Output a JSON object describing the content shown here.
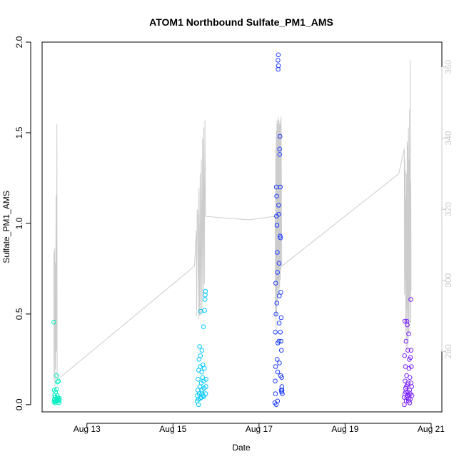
{
  "chart_data": {
    "type": "scatter",
    "title": "ATOM1 Northbound Sulfate_PM1_AMS",
    "xlabel": "Date",
    "ylabel": "Sulfate_PM1_AMS",
    "xlim": [
      "2016-08-11T23:00",
      "2016-08-21T06:00"
    ],
    "ylim": [
      -0.04,
      2.0
    ],
    "y_ticks": [
      "0.0",
      "0.5",
      "1.0",
      "1.5",
      "2.0"
    ],
    "x_ticks": [
      {
        "date": "2016-08-13",
        "label": "Aug 13"
      },
      {
        "date": "2016-08-15",
        "label": "Aug 15"
      },
      {
        "date": "2016-08-17",
        "label": "Aug 17"
      },
      {
        "date": "2016-08-19",
        "label": "Aug 19"
      },
      {
        "date": "2016-08-21",
        "label": "Aug 21"
      }
    ],
    "right_axis": {
      "ylim": [
        263,
        367
      ],
      "ticks": [
        "280",
        "300",
        "320",
        "340",
        "360"
      ],
      "color": "#c8c8c8"
    },
    "marker_colors": {
      "segment1": "#00ffcc",
      "segment2": "#00ccff",
      "segment3": "#0033ff",
      "segment4": "#6600ff"
    },
    "line_color": "#cccccc",
    "segments": [
      {
        "color": "#00eec0",
        "points": [
          [
            "2016-08-12T05:30",
            0.455
          ],
          [
            "2016-08-12T05:45",
            0.08
          ],
          [
            "2016-08-12T05:50",
            0.03
          ],
          [
            "2016-08-12T06:00",
            0.05
          ],
          [
            "2016-08-12T06:10",
            0.02
          ],
          [
            "2016-08-12T06:15",
            0.01
          ],
          [
            "2016-08-12T06:25",
            0.04
          ],
          [
            "2016-08-12T06:30",
            0.07
          ],
          [
            "2016-08-12T06:40",
            0.03
          ],
          [
            "2016-08-12T06:50",
            0.02
          ],
          [
            "2016-08-12T07:00",
            0.085
          ],
          [
            "2016-08-12T07:05",
            0.16
          ],
          [
            "2016-08-12T07:15",
            0.03
          ],
          [
            "2016-08-12T07:25",
            0.02
          ],
          [
            "2016-08-12T07:35",
            0.125
          ],
          [
            "2016-08-12T07:45",
            0.04
          ],
          [
            "2016-08-12T07:55",
            0.025
          ],
          [
            "2016-08-12T08:05",
            0.13
          ],
          [
            "2016-08-12T08:10",
            0.03
          ],
          [
            "2016-08-12T08:20",
            0.01
          ],
          [
            "2016-08-12T08:30",
            0.02
          ],
          [
            "2016-08-12T08:40",
            0.035
          ],
          [
            "2016-08-12T05:40",
            0.015
          ],
          [
            "2016-08-12T07:30",
            0.05
          ]
        ]
      },
      {
        "color": "#00c8ff",
        "points": [
          [
            "2016-08-15T13:30",
            0.02
          ],
          [
            "2016-08-15T13:40",
            0.05
          ],
          [
            "2016-08-15T13:50",
            0.08
          ],
          [
            "2016-08-15T14:00",
            0.14
          ],
          [
            "2016-08-15T14:10",
            0.03
          ],
          [
            "2016-08-15T14:20",
            0.19
          ],
          [
            "2016-08-15T14:30",
            0.25
          ],
          [
            "2016-08-15T14:40",
            0.06
          ],
          [
            "2016-08-15T14:50",
            0.32
          ],
          [
            "2016-08-15T15:00",
            0.1
          ],
          [
            "2016-08-15T15:10",
            0.21
          ],
          [
            "2016-08-15T15:20",
            0.27
          ],
          [
            "2016-08-15T15:30",
            0.515
          ],
          [
            "2016-08-15T15:40",
            0.04
          ],
          [
            "2016-08-15T15:50",
            0.12
          ],
          [
            "2016-08-15T16:00",
            0.18
          ],
          [
            "2016-08-15T16:10",
            0.3
          ],
          [
            "2016-08-15T16:20",
            0.08
          ],
          [
            "2016-08-15T16:30",
            0.15
          ],
          [
            "2016-08-15T16:40",
            0.22
          ],
          [
            "2016-08-15T16:50",
            0.05
          ],
          [
            "2016-08-15T17:00",
            0.43
          ],
          [
            "2016-08-15T17:10",
            0.13
          ],
          [
            "2016-08-15T17:20",
            0.09
          ],
          [
            "2016-08-15T17:30",
            0.2
          ],
          [
            "2016-08-15T17:40",
            0.52
          ],
          [
            "2016-08-15T17:50",
            0.58
          ],
          [
            "2016-08-15T18:00",
            0.605
          ],
          [
            "2016-08-15T18:10",
            0.625
          ],
          [
            "2016-08-15T18:15",
            0.06
          ],
          [
            "2016-08-15T18:20",
            0.1
          ],
          [
            "2016-08-15T18:25",
            0.14
          ],
          [
            "2016-08-15T14:15",
            0.0
          ],
          [
            "2016-08-15T15:15",
            0.035
          ],
          [
            "2016-08-15T16:05",
            0.06
          ],
          [
            "2016-08-15T17:15",
            0.045
          ]
        ]
      },
      {
        "color": "#1e3cff",
        "points": [
          [
            "2016-08-17T09:00",
            0.13
          ],
          [
            "2016-08-17T09:10",
            0.06
          ],
          [
            "2016-08-17T09:20",
            0.67
          ],
          [
            "2016-08-17T09:30",
            0.5
          ],
          [
            "2016-08-17T09:40",
            1.2
          ],
          [
            "2016-08-17T09:50",
            1.15
          ],
          [
            "2016-08-17T10:00",
            0.99
          ],
          [
            "2016-08-17T10:10",
            0.84
          ],
          [
            "2016-08-17T10:20",
            0.02
          ],
          [
            "2016-08-17T10:30",
            0.34
          ],
          [
            "2016-08-17T10:35",
            1.9
          ],
          [
            "2016-08-17T10:40",
            1.85
          ],
          [
            "2016-08-17T10:45",
            1.93
          ],
          [
            "2016-08-17T10:50",
            1.87
          ],
          [
            "2016-08-17T11:00",
            1.05
          ],
          [
            "2016-08-17T11:10",
            0.78
          ],
          [
            "2016-08-17T11:20",
            0.6
          ],
          [
            "2016-08-17T11:30",
            1.41
          ],
          [
            "2016-08-17T11:35",
            1.38
          ],
          [
            "2016-08-17T11:40",
            1.48
          ],
          [
            "2016-08-17T11:50",
            1.2
          ],
          [
            "2016-08-17T12:00",
            0.92
          ],
          [
            "2016-08-17T12:10",
            0.62
          ],
          [
            "2016-08-17T12:20",
            0.48
          ],
          [
            "2016-08-17T12:30",
            0.3
          ],
          [
            "2016-08-17T12:40",
            0.15
          ],
          [
            "2016-08-17T12:50",
            0.08
          ],
          [
            "2016-08-17T13:00",
            0.06
          ],
          [
            "2016-08-17T08:50",
            0.01
          ],
          [
            "2016-08-17T09:05",
            0.4
          ],
          [
            "2016-08-17T09:15",
            0.21
          ],
          [
            "2016-08-17T09:35",
            0.0
          ],
          [
            "2016-08-17T09:45",
            1.04
          ],
          [
            "2016-08-17T09:55",
            0.56
          ],
          [
            "2016-08-17T10:05",
            0.25
          ],
          [
            "2016-08-17T10:15",
            0.73
          ],
          [
            "2016-08-17T10:25",
            0.18
          ],
          [
            "2016-08-17T10:55",
            1.1
          ],
          [
            "2016-08-17T11:05",
            0.35
          ],
          [
            "2016-08-17T11:15",
            0.45
          ],
          [
            "2016-08-17T11:25",
            0.23
          ],
          [
            "2016-08-17T11:45",
            0.93
          ],
          [
            "2016-08-17T11:55",
            0.4
          ],
          [
            "2016-08-17T12:05",
            0.16
          ],
          [
            "2016-08-17T12:15",
            0.35
          ],
          [
            "2016-08-17T12:25",
            0.08
          ],
          [
            "2016-08-17T12:35",
            0.07
          ],
          [
            "2016-08-17T12:45",
            0.1
          ]
        ]
      },
      {
        "color": "#7a22ff",
        "points": [
          [
            "2016-08-20T09:00",
            0.04
          ],
          [
            "2016-08-20T09:10",
            0.27
          ],
          [
            "2016-08-20T09:20",
            0.46
          ],
          [
            "2016-08-20T09:30",
            0.13
          ],
          [
            "2016-08-20T09:40",
            0.21
          ],
          [
            "2016-08-20T09:50",
            0.07
          ],
          [
            "2016-08-20T10:00",
            0.35
          ],
          [
            "2016-08-20T10:10",
            0.1
          ],
          [
            "2016-08-20T10:20",
            0.16
          ],
          [
            "2016-08-20T10:30",
            0.46
          ],
          [
            "2016-08-20T10:40",
            0.44
          ],
          [
            "2016-08-20T10:50",
            0.05
          ],
          [
            "2016-08-20T11:00",
            0.3
          ],
          [
            "2016-08-20T11:10",
            0.12
          ],
          [
            "2016-08-20T11:20",
            0.02
          ],
          [
            "2016-08-20T11:30",
            0.39
          ],
          [
            "2016-08-20T11:40",
            0.2
          ],
          [
            "2016-08-20T11:50",
            0.25
          ],
          [
            "2016-08-20T12:00",
            0.08
          ],
          [
            "2016-08-20T12:10",
            0.15
          ],
          [
            "2016-08-20T12:20",
            0.03
          ],
          [
            "2016-08-20T12:30",
            0.26
          ],
          [
            "2016-08-20T12:40",
            0.58
          ],
          [
            "2016-08-20T12:50",
            0.3
          ],
          [
            "2016-08-20T13:00",
            0.21
          ],
          [
            "2016-08-20T13:10",
            0.1
          ],
          [
            "2016-08-20T13:20",
            0.05
          ],
          [
            "2016-08-20T09:05",
            0.0
          ],
          [
            "2016-08-20T09:25",
            0.06
          ],
          [
            "2016-08-20T09:45",
            0.09
          ],
          [
            "2016-08-20T10:05",
            0.02
          ],
          [
            "2016-08-20T10:25",
            0.04
          ],
          [
            "2016-08-20T10:45",
            0.11
          ],
          [
            "2016-08-20T11:05",
            0.07
          ],
          [
            "2016-08-20T11:25",
            0.03
          ],
          [
            "2016-08-20T11:45",
            0.05
          ],
          [
            "2016-08-20T12:05",
            0.01
          ],
          [
            "2016-08-20T12:25",
            0.06
          ],
          [
            "2016-08-20T12:45",
            0.12
          ]
        ]
      }
    ],
    "line_series": [
      [
        "2016-08-12T05:30",
        308
      ],
      [
        "2016-08-12T05:40",
        272
      ],
      [
        "2016-08-12T05:50",
        300
      ],
      [
        "2016-08-12T06:00",
        309
      ],
      [
        "2016-08-12T06:10",
        270
      ],
      [
        "2016-08-12T06:20",
        305
      ],
      [
        "2016-08-12T06:30",
        275
      ],
      [
        "2016-08-12T06:45",
        324
      ],
      [
        "2016-08-12T07:00",
        280
      ],
      [
        "2016-08-12T07:15",
        344
      ],
      [
        "2016-08-12T07:25",
        272
      ],
      [
        "2016-08-15T12:00",
        304
      ],
      [
        "2016-08-15T13:00",
        314
      ],
      [
        "2016-08-15T13:10",
        290
      ],
      [
        "2016-08-15T13:30",
        320
      ],
      [
        "2016-08-15T13:50",
        318
      ],
      [
        "2016-08-15T14:10",
        289
      ],
      [
        "2016-08-15T14:30",
        326
      ],
      [
        "2016-08-15T14:50",
        290
      ],
      [
        "2016-08-15T15:10",
        330
      ],
      [
        "2016-08-15T15:30",
        290
      ],
      [
        "2016-08-15T15:50",
        334
      ],
      [
        "2016-08-15T16:10",
        291
      ],
      [
        "2016-08-15T16:30",
        340
      ],
      [
        "2016-08-15T16:50",
        295
      ],
      [
        "2016-08-15T17:10",
        343
      ],
      [
        "2016-08-15T17:30",
        299
      ],
      [
        "2016-08-15T17:50",
        345
      ],
      [
        "2016-08-15T18:10",
        318
      ],
      [
        "2016-08-16T18:00",
        317
      ],
      [
        "2016-08-17T09:00",
        318
      ],
      [
        "2016-08-17T09:10",
        290
      ],
      [
        "2016-08-17T09:20",
        337
      ],
      [
        "2016-08-17T09:30",
        285
      ],
      [
        "2016-08-17T09:40",
        342
      ],
      [
        "2016-08-17T09:50",
        290
      ],
      [
        "2016-08-17T10:00",
        345
      ],
      [
        "2016-08-17T10:10",
        294
      ],
      [
        "2016-08-17T10:20",
        344
      ],
      [
        "2016-08-17T10:30",
        295
      ],
      [
        "2016-08-17T10:40",
        346
      ],
      [
        "2016-08-17T10:50",
        300
      ],
      [
        "2016-08-17T11:00",
        345
      ],
      [
        "2016-08-17T11:10",
        296
      ],
      [
        "2016-08-17T11:20",
        344
      ],
      [
        "2016-08-17T11:30",
        298
      ],
      [
        "2016-08-17T11:40",
        345
      ],
      [
        "2016-08-17T11:50",
        300
      ],
      [
        "2016-08-17T12:00",
        344
      ],
      [
        "2016-08-17T12:10",
        303
      ],
      [
        "2016-08-17T12:20",
        346
      ],
      [
        "2016-08-17T12:40",
        304
      ],
      [
        "2016-08-20T06:00",
        330
      ],
      [
        "2016-08-20T09:00",
        337
      ],
      [
        "2016-08-20T09:10",
        296
      ],
      [
        "2016-08-20T09:20",
        334
      ],
      [
        "2016-08-20T09:30",
        300
      ],
      [
        "2016-08-20T09:40",
        331
      ],
      [
        "2016-08-20T09:50",
        285
      ],
      [
        "2016-08-20T10:00",
        323
      ],
      [
        "2016-08-20T10:10",
        281
      ],
      [
        "2016-08-20T10:20",
        330
      ],
      [
        "2016-08-20T10:30",
        292
      ],
      [
        "2016-08-20T10:40",
        339
      ],
      [
        "2016-08-20T10:50",
        280
      ],
      [
        "2016-08-20T11:00",
        338
      ],
      [
        "2016-08-20T11:10",
        283
      ],
      [
        "2016-08-20T11:20",
        343
      ],
      [
        "2016-08-20T11:30",
        285
      ],
      [
        "2016-08-20T11:40",
        334
      ],
      [
        "2016-08-20T11:50",
        294
      ],
      [
        "2016-08-20T12:00",
        348
      ],
      [
        "2016-08-20T12:10",
        285
      ],
      [
        "2016-08-20T12:20",
        362
      ],
      [
        "2016-08-20T12:30",
        288
      ],
      [
        "2016-08-20T12:40",
        328
      ],
      [
        "2016-08-20T12:50",
        297
      ]
    ]
  }
}
